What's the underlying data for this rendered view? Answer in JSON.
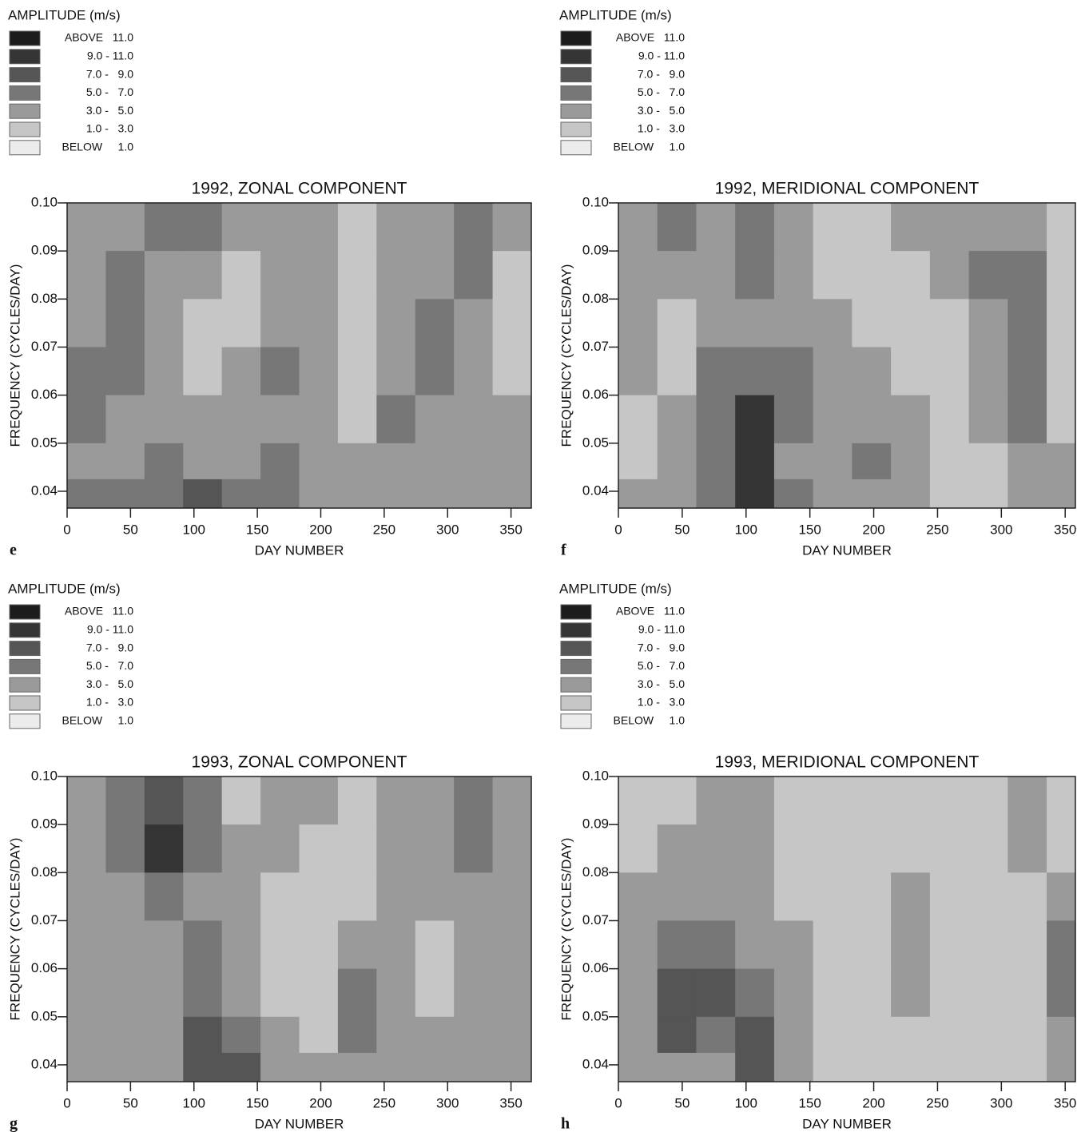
{
  "chart_data": [
    {
      "type": "contour",
      "title": "1992, ZONAL COMPONENT",
      "panel_label": "e",
      "xlabel": "DAY NUMBER",
      "ylabel": "FREQUENCY (CYCLES/DAY)",
      "legend_title": "AMPLITUDE (m/s)",
      "legend": [
        {
          "label": "ABOVE   11.0",
          "color": "#1c1c1c"
        },
        {
          "label": "9.0 - 11.0",
          "color": "#353535"
        },
        {
          "label": "7.0 -   9.0",
          "color": "#555555"
        },
        {
          "label": "5.0 -   7.0",
          "color": "#777777"
        },
        {
          "label": "3.0 -   5.0",
          "color": "#9a9a9a"
        },
        {
          "label": "1.0 -   3.0",
          "color": "#c6c6c6"
        },
        {
          "label": "BELOW     1.0",
          "color": "#ececec"
        }
      ],
      "levels": [
        1,
        3,
        5,
        7,
        9,
        11
      ],
      "xlim": [
        0,
        366
      ],
      "ylim": [
        0.0365,
        0.1
      ],
      "xticks": [
        0,
        50,
        100,
        150,
        200,
        250,
        300,
        350
      ],
      "yticks": [
        0.04,
        0.05,
        0.06,
        0.07,
        0.08,
        0.09,
        {
          "value": 0.1,
          "label": "0.10"
        }
      ],
      "x": [
        15,
        46,
        76,
        107,
        137,
        168,
        198,
        229,
        259,
        290,
        320,
        351
      ],
      "y": [
        0.095,
        0.085,
        0.075,
        0.065,
        0.055,
        0.045,
        0.04
      ],
      "z": [
        [
          4,
          4,
          5,
          6,
          4,
          4,
          3,
          2,
          4,
          4,
          5,
          3
        ],
        [
          4,
          5,
          4,
          3,
          2,
          4,
          3,
          2,
          4,
          4,
          5,
          2
        ],
        [
          3,
          5,
          4,
          2,
          2,
          4,
          3,
          2,
          3,
          6,
          4,
          2
        ],
        [
          5,
          6,
          4,
          2,
          4,
          5,
          3,
          2,
          4,
          6,
          4,
          2
        ],
        [
          5,
          4,
          3,
          4,
          4,
          4,
          3,
          2,
          6,
          4,
          4,
          3
        ],
        [
          4,
          4,
          5,
          4,
          3,
          5,
          3,
          3,
          4,
          3,
          4,
          3
        ],
        [
          5,
          5,
          6,
          8,
          5,
          6,
          3,
          3,
          4,
          3,
          4,
          3
        ]
      ]
    },
    {
      "type": "contour",
      "title": "1992, MERIDIONAL COMPONENT",
      "panel_label": "f",
      "xlabel": "DAY NUMBER",
      "ylabel": "FREQUENCY (CYCLES/DAY)",
      "legend_title": "AMPLITUDE (m/s)",
      "legend": [
        {
          "label": "ABOVE   11.0",
          "color": "#1c1c1c"
        },
        {
          "label": "9.0 - 11.0",
          "color": "#353535"
        },
        {
          "label": "7.0 -   9.0",
          "color": "#555555"
        },
        {
          "label": "5.0 -   7.0",
          "color": "#777777"
        },
        {
          "label": "3.0 -   5.0",
          "color": "#9a9a9a"
        },
        {
          "label": "1.0 -   3.0",
          "color": "#c6c6c6"
        },
        {
          "label": "BELOW     1.0",
          "color": "#ececec"
        }
      ],
      "levels": [
        1,
        3,
        5,
        7,
        9,
        11
      ],
      "xlim": [
        0,
        358
      ],
      "ylim": [
        0.0365,
        0.1
      ],
      "xticks": [
        0,
        50,
        100,
        150,
        200,
        250,
        300,
        350
      ],
      "yticks": [
        0.04,
        0.05,
        0.06,
        0.07,
        0.08,
        0.09,
        {
          "value": 0.1,
          "label": "0.10"
        }
      ],
      "x": [
        15,
        46,
        76,
        107,
        137,
        168,
        198,
        229,
        259,
        290,
        320,
        351
      ],
      "y": [
        0.095,
        0.085,
        0.075,
        0.065,
        0.055,
        0.045,
        0.04
      ],
      "z": [
        [
          4,
          5,
          4,
          6,
          4,
          2,
          2,
          3,
          4,
          4,
          3,
          2
        ],
        [
          3,
          4,
          4,
          5,
          4,
          2,
          2,
          2,
          4,
          6,
          5,
          2
        ],
        [
          3,
          2,
          3,
          4,
          3,
          3,
          2,
          1,
          2,
          4,
          6,
          2
        ],
        [
          3,
          2,
          5,
          6,
          5,
          4,
          3,
          2,
          2,
          4,
          6,
          2
        ],
        [
          2,
          3,
          5,
          9,
          5,
          3,
          4,
          3,
          2,
          4,
          6,
          2
        ],
        [
          2,
          4,
          6,
          10,
          4,
          3,
          5,
          3,
          2,
          2,
          4,
          3
        ],
        [
          4,
          4,
          6,
          9,
          5,
          3,
          4,
          3,
          2,
          2,
          3,
          3
        ]
      ]
    },
    {
      "type": "contour",
      "title": "1993, ZONAL COMPONENT",
      "panel_label": "g",
      "xlabel": "DAY NUMBER",
      "ylabel": "FREQUENCY (CYCLES/DAY)",
      "legend_title": "AMPLITUDE (m/s)",
      "legend": [
        {
          "label": "ABOVE   11.0",
          "color": "#1c1c1c"
        },
        {
          "label": "9.0 - 11.0",
          "color": "#353535"
        },
        {
          "label": "7.0 -   9.0",
          "color": "#555555"
        },
        {
          "label": "5.0 -   7.0",
          "color": "#777777"
        },
        {
          "label": "3.0 -   5.0",
          "color": "#9a9a9a"
        },
        {
          "label": "1.0 -   3.0",
          "color": "#c6c6c6"
        },
        {
          "label": "BELOW     1.0",
          "color": "#ececec"
        }
      ],
      "levels": [
        1,
        3,
        5,
        7,
        9,
        11
      ],
      "xlim": [
        0,
        366
      ],
      "ylim": [
        0.0365,
        0.1
      ],
      "xticks": [
        0,
        50,
        100,
        150,
        200,
        250,
        300,
        350
      ],
      "yticks": [
        0.04,
        0.05,
        0.06,
        0.07,
        0.08,
        0.09,
        {
          "value": 0.1,
          "label": "0.10"
        }
      ],
      "x": [
        15,
        46,
        76,
        107,
        137,
        168,
        198,
        229,
        259,
        290,
        320,
        351
      ],
      "y": [
        0.095,
        0.085,
        0.075,
        0.065,
        0.055,
        0.045,
        0.04
      ],
      "z": [
        [
          4,
          5,
          8,
          5,
          2,
          4,
          3,
          2,
          3,
          4,
          5,
          3
        ],
        [
          4,
          5,
          9,
          6,
          4,
          3,
          2,
          2,
          4,
          3,
          5,
          3
        ],
        [
          3,
          4,
          6,
          4,
          4,
          2,
          2,
          2,
          4,
          3,
          4,
          3
        ],
        [
          3,
          4,
          4,
          5,
          4,
          2,
          2,
          3,
          4,
          2,
          4,
          4
        ],
        [
          4,
          4,
          3,
          6,
          4,
          2,
          2,
          5,
          4,
          2,
          4,
          4
        ],
        [
          4,
          4,
          3,
          7,
          6,
          3,
          2,
          5,
          4,
          3,
          4,
          4
        ],
        [
          4,
          4,
          3,
          8,
          8,
          3,
          3,
          4,
          4,
          3,
          4,
          4
        ]
      ]
    },
    {
      "type": "contour",
      "title": "1993, MERIDIONAL COMPONENT",
      "panel_label": "h",
      "xlabel": "DAY NUMBER",
      "ylabel": "FREQUENCY (CYCLES/DAY)",
      "legend_title": "AMPLITUDE (m/s)",
      "legend": [
        {
          "label": "ABOVE   11.0",
          "color": "#1c1c1c"
        },
        {
          "label": "9.0 - 11.0",
          "color": "#353535"
        },
        {
          "label": "7.0 -   9.0",
          "color": "#555555"
        },
        {
          "label": "5.0 -   7.0",
          "color": "#777777"
        },
        {
          "label": "3.0 -   5.0",
          "color": "#9a9a9a"
        },
        {
          "label": "1.0 -   3.0",
          "color": "#c6c6c6"
        },
        {
          "label": "BELOW     1.0",
          "color": "#ececec"
        }
      ],
      "levels": [
        1,
        3,
        5,
        7,
        9,
        11
      ],
      "xlim": [
        0,
        358
      ],
      "ylim": [
        0.0365,
        0.1
      ],
      "xticks": [
        0,
        50,
        100,
        150,
        200,
        250,
        300,
        350
      ],
      "yticks": [
        0.04,
        0.05,
        0.06,
        0.07,
        0.08,
        0.09,
        {
          "value": 0.1,
          "label": "0.10"
        }
      ],
      "x": [
        15,
        46,
        76,
        107,
        137,
        168,
        198,
        229,
        259,
        290,
        320,
        351
      ],
      "y": [
        0.095,
        0.085,
        0.075,
        0.065,
        0.055,
        0.045,
        0.04
      ],
      "z": [
        [
          2,
          2,
          4,
          4,
          2,
          2,
          2,
          2,
          2,
          2,
          3,
          2
        ],
        [
          2,
          3,
          3,
          4,
          2,
          2,
          2,
          2,
          2,
          2,
          3,
          2
        ],
        [
          3,
          4,
          3,
          4,
          2,
          2,
          2,
          4,
          2,
          2,
          2,
          4
        ],
        [
          4,
          6,
          6,
          4,
          3,
          2,
          2,
          4,
          2,
          2,
          2,
          5
        ],
        [
          4,
          8,
          8,
          6,
          3,
          1,
          2,
          3,
          2,
          2,
          2,
          6
        ],
        [
          4,
          7,
          6,
          8,
          4,
          2,
          1,
          2,
          2,
          2,
          2,
          4
        ],
        [
          3,
          4,
          4,
          7,
          4,
          2,
          1,
          2,
          2,
          2,
          2,
          3
        ]
      ]
    }
  ]
}
